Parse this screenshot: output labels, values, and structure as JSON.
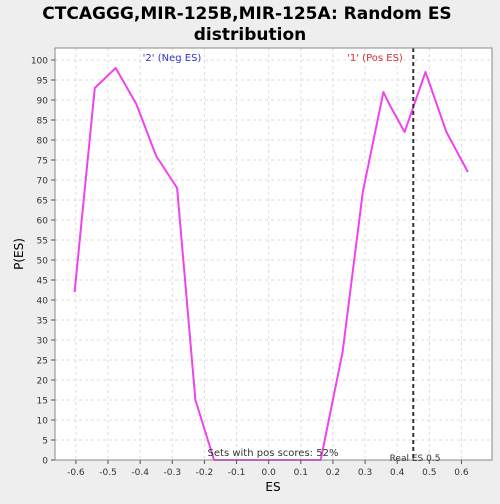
{
  "chart_data": {
    "type": "line",
    "title_line1": "CTCAGGG,MIR-125B,MIR-125A: Random ES",
    "title_line2": "distribution",
    "xlabel": "ES",
    "ylabel": "P(ES)",
    "xlim": [
      -0.665,
      0.695
    ],
    "ylim": [
      0,
      103
    ],
    "x_ticks": [
      -0.6,
      -0.5,
      -0.4,
      -0.3,
      -0.2,
      -0.1,
      0.0,
      0.1,
      0.2,
      0.3,
      0.4,
      0.5,
      0.6
    ],
    "x_tick_labels": [
      "-0.6",
      "-0.5",
      "-0.4",
      "-0.3",
      "-0.2",
      "-0.1",
      "0.0",
      "0.1",
      "0.2",
      "0.3",
      "0.4",
      "0.5",
      "0.6"
    ],
    "y_ticks": [
      0,
      5,
      10,
      15,
      20,
      25,
      30,
      35,
      40,
      45,
      50,
      55,
      60,
      65,
      70,
      75,
      80,
      85,
      90,
      95,
      100
    ],
    "y_tick_labels": [
      "0",
      "5",
      "10",
      "15",
      "20",
      "25",
      "30",
      "35",
      "40",
      "45",
      "50",
      "55",
      "60",
      "65",
      "70",
      "75",
      "80",
      "85",
      "90",
      "95",
      "100"
    ],
    "grid": true,
    "series": [
      {
        "color": "#ee44ee",
        "points": [
          {
            "x": -0.604,
            "y": 42
          },
          {
            "x": -0.541,
            "y": 93
          },
          {
            "x": -0.476,
            "y": 98
          },
          {
            "x": -0.412,
            "y": 89
          },
          {
            "x": -0.35,
            "y": 76
          },
          {
            "x": -0.285,
            "y": 68
          },
          {
            "x": -0.228,
            "y": 15
          },
          {
            "x": -0.17,
            "y": 0
          },
          {
            "x": 0.162,
            "y": 0
          },
          {
            "x": 0.23,
            "y": 27
          },
          {
            "x": 0.293,
            "y": 67
          },
          {
            "x": 0.357,
            "y": 92
          },
          {
            "x": 0.375,
            "y": 89
          },
          {
            "x": 0.423,
            "y": 82
          },
          {
            "x": 0.488,
            "y": 97
          },
          {
            "x": 0.553,
            "y": 82
          },
          {
            "x": 0.62,
            "y": 72
          }
        ]
      }
    ],
    "real_es": {
      "x": 0.45,
      "label": "Real ES 0.5"
    },
    "annotations": {
      "neg": {
        "text": "'2' (Neg ES)",
        "color": "#3333cc"
      },
      "pos": {
        "text": "'1' (Pos ES)",
        "color": "#cc3333"
      },
      "sets": {
        "text": "Sets with pos scores: 52%"
      }
    }
  }
}
